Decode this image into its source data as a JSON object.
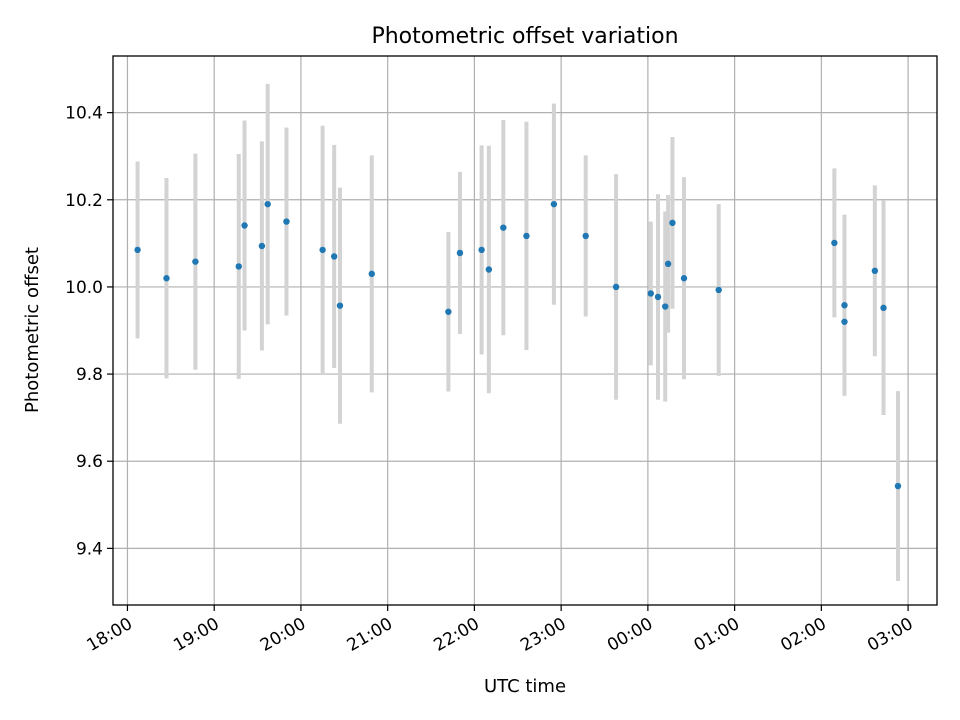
{
  "chart_data": {
    "type": "scatter",
    "title": "Photometric offset variation",
    "xlabel": "UTC time",
    "ylabel": "Photometric offset",
    "x_unit": "UTC time (hours past 00:00 of first night; values >24 are after midnight)",
    "xlim": [
      "17:50",
      "03:20"
    ],
    "ylim": [
      9.27,
      10.53
    ],
    "x_ticks": [
      "18:00",
      "19:00",
      "20:00",
      "21:00",
      "22:00",
      "23:00",
      "00:00",
      "01:00",
      "02:00",
      "03:00"
    ],
    "y_ticks": [
      "9.4",
      "9.6",
      "9.8",
      "10.0",
      "10.2",
      "10.4"
    ],
    "grid": true,
    "marker_color": "#1f77b4",
    "errorbar_color": "#d3d3d3",
    "points": [
      {
        "time": "18:07",
        "y": 10.085,
        "err": 0.203
      },
      {
        "time": "18:27",
        "y": 10.02,
        "err": 0.23
      },
      {
        "time": "18:47",
        "y": 10.058,
        "err": 0.248
      },
      {
        "time": "19:17",
        "y": 10.047,
        "err": 0.258
      },
      {
        "time": "19:21",
        "y": 10.141,
        "err": 0.241
      },
      {
        "time": "19:33",
        "y": 10.094,
        "err": 0.24
      },
      {
        "time": "19:37",
        "y": 10.19,
        "err": 0.276
      },
      {
        "time": "19:50",
        "y": 10.15,
        "err": 0.216
      },
      {
        "time": "20:15",
        "y": 10.085,
        "err": 0.285
      },
      {
        "time": "20:23",
        "y": 10.07,
        "err": 0.256
      },
      {
        "time": "20:27",
        "y": 9.957,
        "err": 0.271
      },
      {
        "time": "20:49",
        "y": 10.03,
        "err": 0.272
      },
      {
        "time": "21:42",
        "y": 9.943,
        "err": 0.183
      },
      {
        "time": "21:50",
        "y": 10.078,
        "err": 0.186
      },
      {
        "time": "22:05",
        "y": 10.085,
        "err": 0.24
      },
      {
        "time": "22:10",
        "y": 10.04,
        "err": 0.284
      },
      {
        "time": "22:20",
        "y": 10.136,
        "err": 0.247
      },
      {
        "time": "22:36",
        "y": 10.117,
        "err": 0.262
      },
      {
        "time": "22:55",
        "y": 10.19,
        "err": 0.231
      },
      {
        "time": "23:17",
        "y": 10.117,
        "err": 0.185
      },
      {
        "time": "23:38",
        "y": 10.0,
        "err": 0.259
      },
      {
        "time": "00:02",
        "y": 9.985,
        "err": 0.165
      },
      {
        "time": "00:07",
        "y": 9.977,
        "err": 0.236
      },
      {
        "time": "00:12",
        "y": 9.955,
        "err": 0.218
      },
      {
        "time": "00:14",
        "y": 10.053,
        "err": 0.158
      },
      {
        "time": "00:17",
        "y": 10.147,
        "err": 0.197
      },
      {
        "time": "00:25",
        "y": 10.02,
        "err": 0.232
      },
      {
        "time": "00:49",
        "y": 9.993,
        "err": 0.197
      },
      {
        "time": "02:09",
        "y": 10.101,
        "err": 0.171
      },
      {
        "time": "02:16",
        "y": 9.958,
        "err": 0.208
      },
      {
        "time": "02:16",
        "y": 9.92,
        "err": 0.0
      },
      {
        "time": "02:37",
        "y": 10.037,
        "err": 0.196
      },
      {
        "time": "02:43",
        "y": 9.952,
        "err": 0.246
      },
      {
        "time": "02:53",
        "y": 9.543,
        "err": 0.218
      }
    ]
  }
}
